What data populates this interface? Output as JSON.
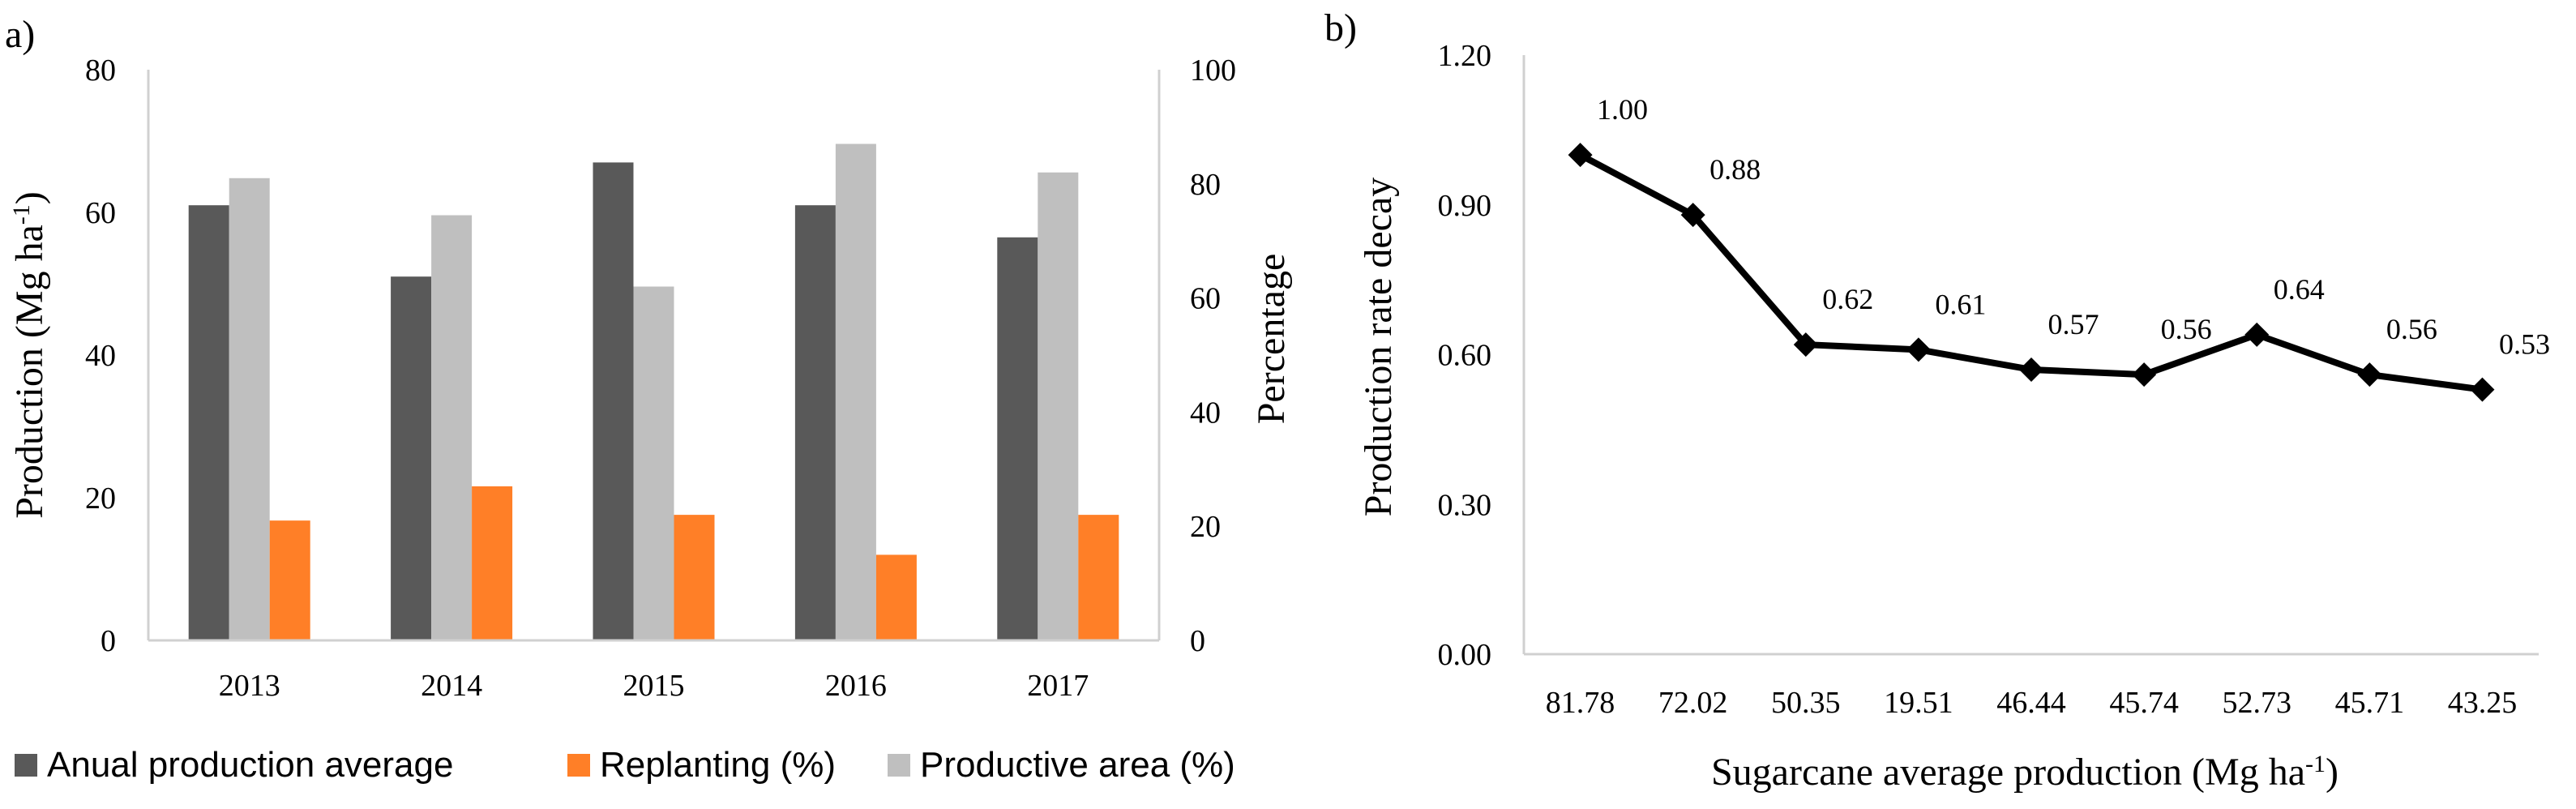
{
  "chart_data": [
    {
      "panel_label": "a)",
      "type": "bar",
      "categories": [
        "2013",
        "2014",
        "2015",
        "2016",
        "2017"
      ],
      "series": [
        {
          "name": "Anual production average",
          "axis": "left",
          "color": "#595959",
          "values": [
            61,
            51,
            67,
            61,
            56.5
          ]
        },
        {
          "name": "Productive area (%)",
          "axis": "right",
          "color": "#bfbfbf",
          "values": [
            81,
            74.5,
            62,
            87,
            82
          ]
        },
        {
          "name": "Replanting (%)",
          "axis": "right",
          "color": "#ff7f27",
          "values": [
            21,
            27,
            22,
            15,
            22
          ]
        }
      ],
      "legend": [
        "Anual production average",
        "Replanting (%)",
        "Productive area (%)"
      ],
      "ylabel": "Production (Mg ha",
      "ylabel_sup": "-1",
      "ylabel_close": ")",
      "y2label": "Percentage",
      "ylim": [
        0,
        80
      ],
      "yticks": [
        "0",
        "20",
        "40",
        "60",
        "80"
      ],
      "y2lim": [
        0,
        100
      ],
      "y2ticks": [
        "0",
        "20",
        "40",
        "60",
        "80",
        "100"
      ],
      "legend_position": "bottom"
    },
    {
      "panel_label": "b)",
      "type": "line",
      "categories": [
        "81.78",
        "72.02",
        "50.35",
        "19.51",
        "46.44",
        "45.74",
        "52.73",
        "45.71",
        "43.25"
      ],
      "values": [
        1.0,
        0.88,
        0.62,
        0.61,
        0.57,
        0.56,
        0.64,
        0.56,
        0.53
      ],
      "data_labels": [
        "1.00",
        "0.88",
        "0.62",
        "0.61",
        "0.57",
        "0.56",
        "0.64",
        "0.56",
        "0.53"
      ],
      "ylabel": "Production  rate decay",
      "xlabel": "Sugarcane average production (Mg ha",
      "xlabel_sup": "-1",
      "xlabel_close": ")",
      "ylim": [
        0,
        1.2
      ],
      "yticks": [
        "0.00",
        "0.30",
        "0.60",
        "0.90",
        "1.20"
      ],
      "color": "#000000"
    }
  ]
}
